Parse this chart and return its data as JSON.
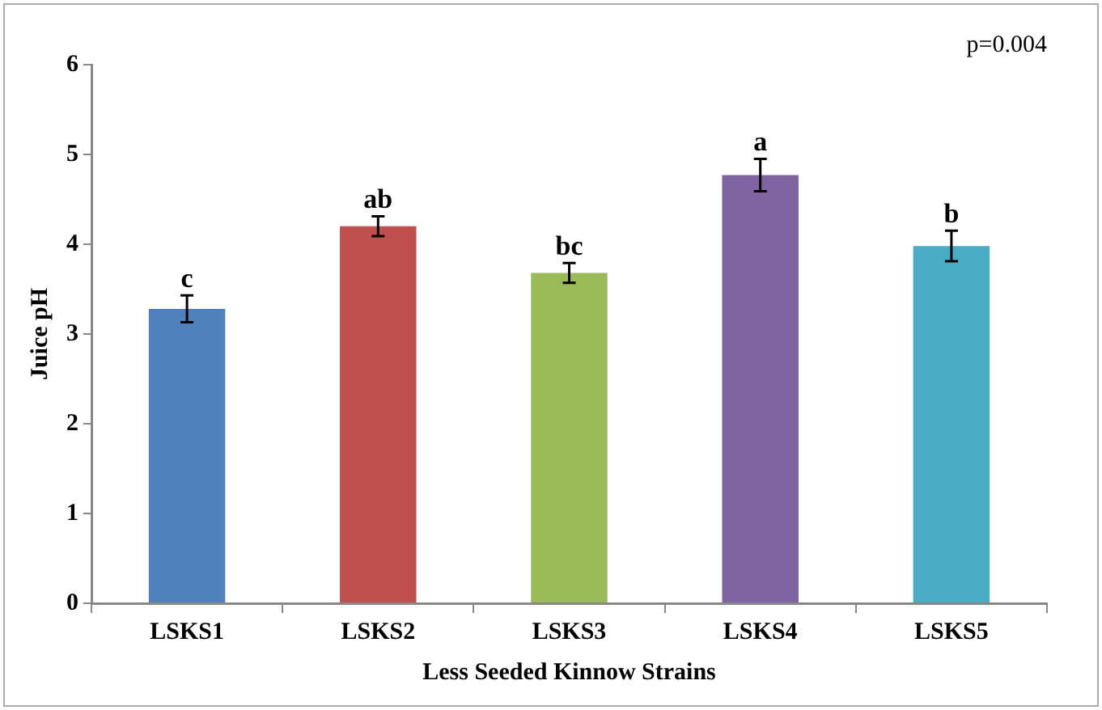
{
  "chart_data": {
    "type": "bar",
    "xlabel": "Less Seeded Kinnow Strains",
    "ylabel": "Juice pH",
    "categories": [
      "LSKS1",
      "LSKS2",
      "LSKS3",
      "LSKS4",
      "LSKS5"
    ],
    "values": [
      3.28,
      4.2,
      3.68,
      4.77,
      3.98
    ],
    "errors": [
      0.15,
      0.11,
      0.11,
      0.18,
      0.17
    ],
    "colors": [
      "#4f81bd",
      "#c0504d",
      "#9bbb59",
      "#8064a2",
      "#4bacc6"
    ],
    "ylim": [
      0,
      6
    ],
    "yticks": [
      0,
      1,
      2,
      3,
      4,
      5,
      6
    ],
    "grid": false,
    "legend": false,
    "annotations": [
      {
        "text": "c",
        "x": "LSKS1",
        "y": 3.43
      },
      {
        "text": "ab",
        "x": "LSKS2",
        "y": 4.31
      },
      {
        "text": "bc",
        "x": "LSKS3",
        "y": 3.79
      },
      {
        "text": "a",
        "x": "LSKS4",
        "y": 4.95
      },
      {
        "text": "b",
        "x": "LSKS5",
        "y": 4.15
      },
      "p=0.004"
    ]
  }
}
